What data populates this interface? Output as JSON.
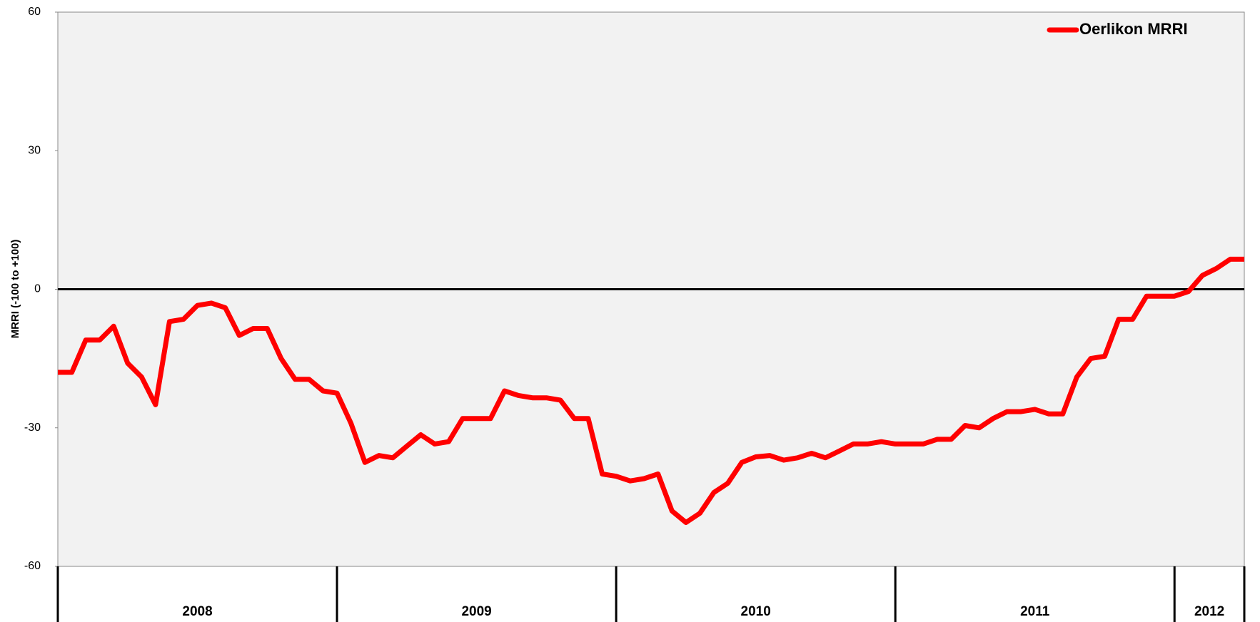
{
  "chart_data": {
    "type": "line",
    "ylabel": "MRRI (-100 to +100)",
    "x": [
      "2008",
      "2008",
      "2008",
      "2008",
      "2008",
      "2008",
      "2008",
      "2008",
      "2008",
      "2008",
      "2008",
      "2008",
      "2008",
      "2008",
      "2008",
      "2008",
      "2008",
      "2008",
      "2008",
      "2008",
      "2009",
      "2009",
      "2009",
      "2009",
      "2009",
      "2009",
      "2009",
      "2009",
      "2009",
      "2009",
      "2009",
      "2009",
      "2009",
      "2009",
      "2009",
      "2009",
      "2009",
      "2009",
      "2009",
      "2009",
      "2010",
      "2010",
      "2010",
      "2010",
      "2010",
      "2010",
      "2010",
      "2010",
      "2010",
      "2010",
      "2010",
      "2010",
      "2010",
      "2010",
      "2010",
      "2010",
      "2010",
      "2010",
      "2010",
      "2010",
      "2011",
      "2011",
      "2011",
      "2011",
      "2011",
      "2011",
      "2011",
      "2011",
      "2011",
      "2011",
      "2011",
      "2011",
      "2011",
      "2011",
      "2011",
      "2011",
      "2011",
      "2011",
      "2011",
      "2011",
      "2012",
      "2012",
      "2012",
      "2012",
      "2012",
      "2012"
    ],
    "series": [
      {
        "name": "Oerlikon MRRI",
        "color": "#ff0000",
        "values": [
          -18,
          -18,
          -11,
          -11,
          -8,
          -16,
          -19,
          -25,
          -7,
          -6.5,
          -3.5,
          -3,
          -4,
          -10,
          -8.5,
          -8.5,
          -15,
          -19.5,
          -19.5,
          -22,
          -22.5,
          -29,
          -37.5,
          -36,
          -36.5,
          -34,
          -31.5,
          -33.5,
          -33,
          -28,
          -28,
          -28,
          -22,
          -23,
          -23.5,
          -23.5,
          -24,
          -28,
          -28,
          -40,
          -40.5,
          -41.5,
          -41,
          -40,
          -48,
          -50.5,
          -48.5,
          -44,
          -42,
          -37.5,
          -36.3,
          -36,
          -37,
          -36.5,
          -35.5,
          -36.5,
          -35,
          -33.5,
          -33.5,
          -33,
          -33.5,
          -33.5,
          -33.5,
          -32.5,
          -32.5,
          -29.5,
          -30,
          -28,
          -26.5,
          -26.5,
          -26,
          -27,
          -27,
          -19,
          -15,
          -14.5,
          -6.5,
          -6.5,
          -1.5,
          -1.5,
          -1.5,
          -0.5,
          3,
          4.5,
          6.5,
          6.5
        ]
      }
    ],
    "ylim": [
      -60,
      60
    ],
    "yticks": [
      -60,
      -30,
      0,
      30,
      60
    ],
    "zero_line": true,
    "legend": "top-right",
    "background": "#f2f2f2"
  }
}
